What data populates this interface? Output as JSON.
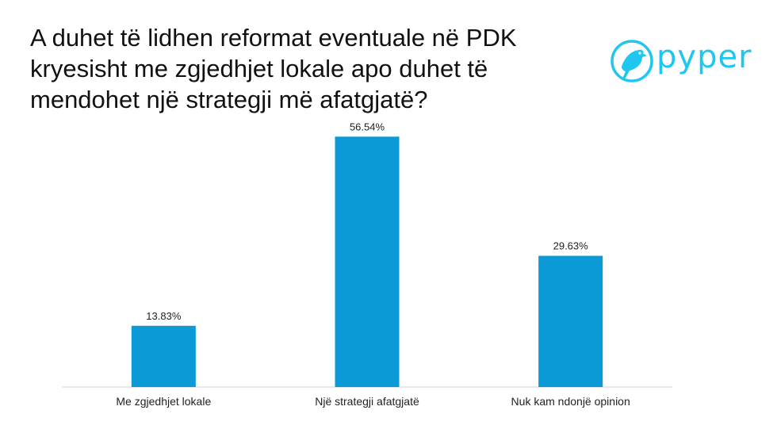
{
  "title": "A duhet të lidhen reformat eventuale në PDK kryesisht me zgjedhjet lokale apo duhet të mendohet një strategji më afatgjatë?",
  "logo": {
    "text": "pyper",
    "color": "#1ec6f0",
    "icon": "bird-icon"
  },
  "chart_data": {
    "type": "bar",
    "categories": [
      "Me zgjedhjet lokale",
      "Një strategji afatgjatë",
      "Nuk kam ndonjë opinion"
    ],
    "values": [
      13.83,
      56.54,
      29.63
    ],
    "data_labels": [
      "13.83%",
      "56.54%",
      "29.63%"
    ],
    "bar_color": "#0b9ad6",
    "ylim": [
      0,
      60
    ],
    "grid": false,
    "legend": "none"
  }
}
